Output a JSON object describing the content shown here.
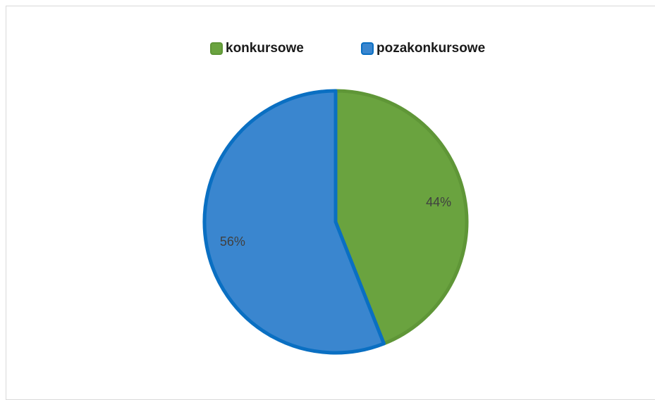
{
  "chart_data": {
    "type": "pie",
    "categories": [
      "konkursowe",
      "pozakonkursowe"
    ],
    "values": [
      44,
      56
    ],
    "data_labels": [
      "44%",
      "56%"
    ],
    "colors": [
      "#6aa33f",
      "#3a86cf"
    ],
    "border_colors": [
      "#5f9637",
      "#0a6fc2"
    ],
    "legend_position": "top",
    "title": ""
  }
}
